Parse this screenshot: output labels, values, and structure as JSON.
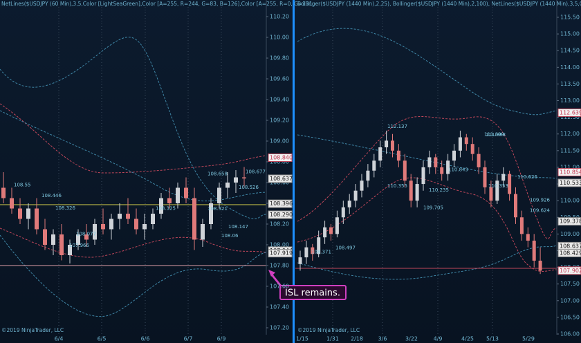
{
  "left": {
    "header": "NetLines($USDJPY (60 Min),3,5,Color [LightSeaGreen],Color [A=255, R=244, G=83, B=126],Color [A=255, R=0, G=131,",
    "copyright": "©2019 NinjaTrader, LLC",
    "yticks": [
      {
        "value": 110.2,
        "label": "110.20"
      },
      {
        "value": 110.0,
        "label": "110.00"
      },
      {
        "value": 109.8,
        "label": "109.80"
      },
      {
        "value": 109.6,
        "label": "109.60"
      },
      {
        "value": 109.4,
        "label": "109.40"
      },
      {
        "value": 109.2,
        "label": "109.20"
      },
      {
        "value": 109.0,
        "label": "109.00"
      },
      {
        "value": 108.8,
        "label": "108.80"
      },
      {
        "value": 108.6,
        "label": "108.60"
      },
      {
        "value": 108.4,
        "label": "108.40"
      },
      {
        "value": 108.2,
        "label": "108.20"
      },
      {
        "value": 108.0,
        "label": "108.00"
      },
      {
        "value": 107.8,
        "label": "107.80"
      },
      {
        "value": 107.6,
        "label": "107.60"
      },
      {
        "value": 107.4,
        "label": "107.40"
      },
      {
        "value": 107.2,
        "label": "107.20"
      }
    ],
    "dates": [
      "6/4",
      "6/5",
      "6/6",
      "6/7",
      "6/9"
    ],
    "price_tags": [
      {
        "value": 108.84,
        "label": "108.840"
      },
      {
        "value": 108.637,
        "label": "108.637"
      },
      {
        "value": 108.396,
        "label": "108.396"
      },
      {
        "value": 108.29,
        "label": "108.290"
      },
      {
        "value": 107.944,
        "label": "107.944"
      },
      {
        "value": 107.919,
        "label": "107.919"
      }
    ],
    "net_labels": [
      "108.446",
      "108.326",
      "108.077",
      "108.147",
      "108.06",
      "108.321",
      "108.658",
      "108.677",
      "108.526",
      "108.55",
      "107.966",
      "108.325"
    ],
    "candles": [
      [
        108.55,
        108.7,
        108.4,
        108.45
      ],
      [
        108.45,
        108.55,
        108.3,
        108.35
      ],
      [
        108.35,
        108.45,
        108.2,
        108.25
      ],
      [
        108.25,
        108.4,
        108.15,
        108.35
      ],
      [
        108.35,
        108.45,
        108.1,
        108.15
      ],
      [
        108.15,
        108.25,
        107.95,
        108.0
      ],
      [
        108.0,
        108.15,
        107.9,
        108.1
      ],
      [
        108.1,
        108.2,
        107.85,
        107.9
      ],
      [
        107.9,
        108.05,
        107.82,
        108.0
      ],
      [
        108.0,
        108.15,
        107.95,
        108.1
      ],
      [
        108.1,
        108.2,
        107.98,
        108.05
      ],
      [
        108.05,
        108.25,
        108.0,
        108.2
      ],
      [
        108.2,
        108.35,
        108.1,
        108.15
      ],
      [
        108.15,
        108.3,
        108.05,
        108.25
      ],
      [
        108.25,
        108.4,
        108.15,
        108.3
      ],
      [
        108.3,
        108.45,
        108.2,
        108.25
      ],
      [
        108.25,
        108.35,
        108.1,
        108.15
      ],
      [
        108.15,
        108.3,
        108.05,
        108.2
      ],
      [
        108.2,
        108.35,
        108.15,
        108.3
      ],
      [
        108.3,
        108.5,
        108.25,
        108.45
      ],
      [
        108.45,
        108.55,
        108.35,
        108.4
      ],
      [
        108.4,
        108.6,
        108.35,
        108.55
      ],
      [
        108.55,
        108.65,
        108.4,
        108.45
      ],
      [
        108.45,
        108.55,
        107.95,
        108.05
      ],
      [
        108.05,
        108.25,
        107.98,
        108.2
      ],
      [
        108.2,
        108.45,
        108.15,
        108.4
      ],
      [
        108.4,
        108.6,
        108.35,
        108.55
      ],
      [
        108.55,
        108.7,
        108.45,
        108.6
      ],
      [
        108.6,
        108.72,
        108.5,
        108.65
      ],
      [
        108.65,
        108.75,
        108.55,
        108.64
      ]
    ]
  },
  "right": {
    "header": "Bollinger($USDJPY (1440 Min),2,25), Bollinger($USDJPY (1440 Min),2,100), NetLines($USDJPY (1440 Min),3,5,Color",
    "copyright": "©2019 NinjaTrader, LLC",
    "yticks": [
      {
        "value": 115.5,
        "label": "115.50"
      },
      {
        "value": 115.0,
        "label": "115.00"
      },
      {
        "value": 114.5,
        "label": "114.50"
      },
      {
        "value": 114.0,
        "label": "114.00"
      },
      {
        "value": 113.5,
        "label": "113.50"
      },
      {
        "value": 113.0,
        "label": "113.00"
      },
      {
        "value": 112.5,
        "label": "112.50"
      },
      {
        "value": 112.0,
        "label": "112.00"
      },
      {
        "value": 111.5,
        "label": "111.50"
      },
      {
        "value": 111.0,
        "label": "111.00"
      },
      {
        "value": 110.5,
        "label": "110.50"
      },
      {
        "value": 110.0,
        "label": "110.00"
      },
      {
        "value": 109.5,
        "label": "109.50"
      },
      {
        "value": 109.0,
        "label": "109.00"
      },
      {
        "value": 108.5,
        "label": "108.50"
      },
      {
        "value": 108.0,
        "label": "108.00"
      },
      {
        "value": 107.5,
        "label": "107.50"
      },
      {
        "value": 107.0,
        "label": "107.00"
      },
      {
        "value": 106.5,
        "label": "106.50"
      },
      {
        "value": 106.0,
        "label": "106.00"
      }
    ],
    "dates": [
      "1/15",
      "1/31",
      "2/18",
      "3/6",
      "3/22",
      "4/9",
      "4/25",
      "5/13",
      "5/29"
    ],
    "price_tags": [
      {
        "value": 112.639,
        "label": "112.639"
      },
      {
        "value": 110.854,
        "label": "110.854"
      },
      {
        "value": 110.533,
        "label": "110.533"
      },
      {
        "value": 109.378,
        "label": "109.378"
      },
      {
        "value": 108.637,
        "label": "108.637"
      },
      {
        "value": 108.429,
        "label": "108.429"
      },
      {
        "value": 107.902,
        "label": "107.902"
      }
    ],
    "net_labels": [
      "108.371",
      "108.497",
      "109.705",
      "110.355",
      "112.137",
      "110.235",
      "110.843",
      "111.899",
      "111.888",
      "110.353",
      "110.626",
      "109.926",
      "109.624"
    ],
    "candles": [
      [
        108.1,
        108.5,
        107.9,
        108.3
      ],
      [
        108.3,
        108.8,
        108.1,
        108.6
      ],
      [
        108.6,
        108.7,
        108.2,
        108.4
      ],
      [
        108.4,
        109.1,
        108.3,
        108.9
      ],
      [
        108.9,
        109.4,
        108.7,
        109.2
      ],
      [
        109.2,
        109.3,
        108.8,
        109.0
      ],
      [
        109.0,
        109.7,
        108.9,
        109.5
      ],
      [
        109.5,
        110.0,
        109.3,
        109.8
      ],
      [
        109.8,
        110.2,
        109.6,
        110.0
      ],
      [
        110.0,
        110.5,
        109.8,
        110.3
      ],
      [
        110.3,
        110.8,
        110.1,
        110.6
      ],
      [
        110.6,
        111.1,
        110.4,
        110.9
      ],
      [
        110.9,
        111.4,
        110.7,
        111.2
      ],
      [
        111.2,
        111.8,
        111.0,
        111.6
      ],
      [
        111.6,
        112.1,
        111.4,
        111.8
      ],
      [
        111.8,
        112.0,
        111.3,
        111.5
      ],
      [
        111.5,
        111.7,
        111.0,
        111.2
      ],
      [
        111.2,
        111.4,
        110.4,
        110.6
      ],
      [
        110.6,
        110.8,
        109.8,
        110.0
      ],
      [
        110.0,
        110.7,
        109.8,
        110.5
      ],
      [
        110.5,
        111.2,
        110.3,
        111.0
      ],
      [
        111.0,
        111.5,
        110.8,
        111.3
      ],
      [
        111.3,
        111.4,
        110.8,
        111.0
      ],
      [
        111.0,
        111.2,
        110.6,
        110.8
      ],
      [
        110.8,
        111.4,
        110.6,
        111.2
      ],
      [
        111.2,
        111.7,
        111.0,
        111.5
      ],
      [
        111.5,
        112.1,
        111.3,
        111.9
      ],
      [
        111.9,
        112.0,
        111.5,
        111.7
      ],
      [
        111.7,
        111.9,
        111.2,
        111.4
      ],
      [
        111.4,
        111.6,
        110.8,
        111.0
      ],
      [
        111.0,
        111.2,
        110.2,
        110.4
      ],
      [
        110.4,
        110.6,
        109.8,
        110.0
      ],
      [
        110.0,
        110.8,
        109.9,
        110.6
      ],
      [
        110.6,
        111.0,
        110.4,
        110.8
      ],
      [
        110.8,
        110.9,
        110.0,
        110.2
      ],
      [
        110.2,
        110.4,
        109.3,
        109.5
      ],
      [
        109.5,
        109.7,
        108.8,
        109.0
      ],
      [
        109.0,
        109.2,
        108.6,
        108.8
      ],
      [
        108.8,
        109.0,
        108.0,
        108.2
      ],
      [
        108.2,
        108.6,
        107.8,
        107.9
      ]
    ]
  },
  "annotation": "ISL remains."
}
